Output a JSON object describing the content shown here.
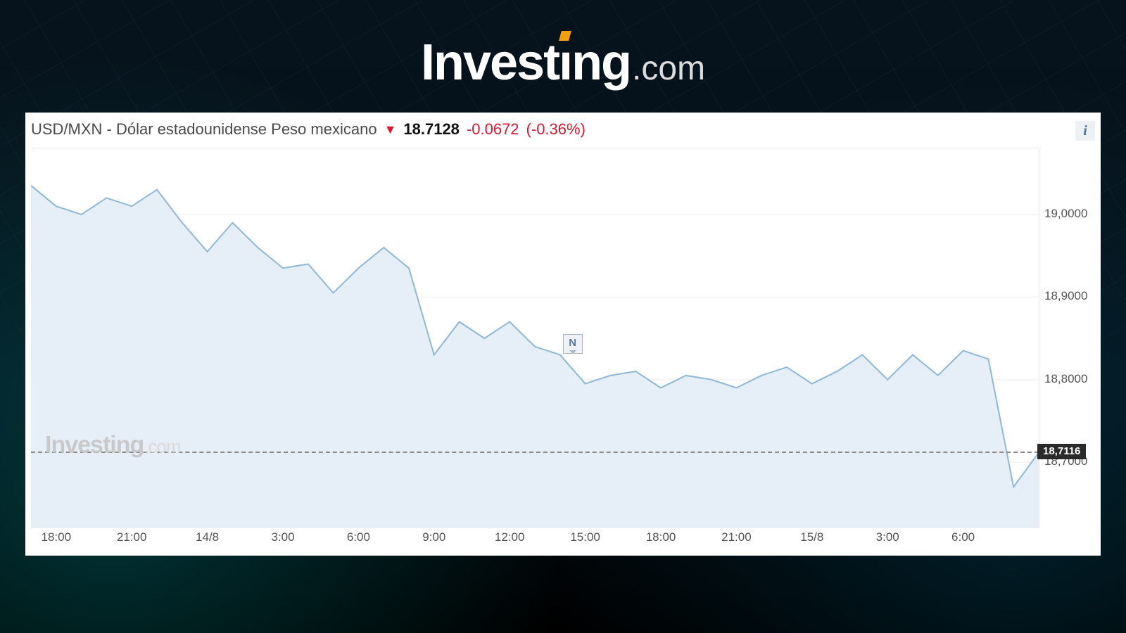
{
  "background": {
    "page_bg": "#000000",
    "grid_tint": "#507896"
  },
  "logo": {
    "investing": "Investing",
    "dot_com": ".com",
    "main_color": "#ffffff",
    "com_color": "#dcdcdc",
    "accent_color": "#f59e0b",
    "investing_fontsize": 72,
    "com_fontsize": 48
  },
  "chart_card": {
    "bg": "#ffffff"
  },
  "header": {
    "pair_label": "USD/MXN - Dólar estadounidense Peso mexicano",
    "arrow_glyph": "▼",
    "price": "18.7128",
    "change": "-0.0672",
    "pct": "(-0.36%)",
    "pair_color": "#4a4a4a",
    "price_color": "#111111",
    "negative_color": "#d9172f",
    "fontsize": 22
  },
  "info_button": {
    "glyph": "i",
    "bg": "#eef1f3",
    "fg": "#4477aa"
  },
  "chart": {
    "type": "area",
    "line_color": "#8fb7d6",
    "fill_color": "#e6eff7",
    "line_width": 2,
    "y_axis": {
      "min": 18.62,
      "max": 19.08,
      "ticks": [
        19.0,
        18.9,
        18.8,
        18.7
      ],
      "tick_labels": [
        "19,0000",
        "18,9000",
        "18,8000",
        "18,7000"
      ],
      "label_color": "#555555",
      "label_fontsize": 17,
      "gridline_color": "#eeeeee"
    },
    "x_axis": {
      "count": 41,
      "tick_indices": [
        1,
        4,
        7,
        10,
        13,
        16,
        19,
        22,
        25,
        28,
        31,
        34,
        37,
        40
      ],
      "tick_labels": [
        "18:00",
        "21:00",
        "14/8",
        "3:00",
        "6:00",
        "9:00",
        "12:00",
        "15:00",
        "18:00",
        "21:00",
        "15/8",
        "3:00",
        "6:00",
        ""
      ],
      "label_color": "#555555",
      "label_fontsize": 17
    },
    "series": [
      19.035,
      19.01,
      19.0,
      19.02,
      19.01,
      19.03,
      18.99,
      18.955,
      18.99,
      18.96,
      18.935,
      18.94,
      18.905,
      18.935,
      18.96,
      18.935,
      18.83,
      18.87,
      18.85,
      18.87,
      18.84,
      18.83,
      18.795,
      18.805,
      18.81,
      18.79,
      18.805,
      18.8,
      18.79,
      18.805,
      18.815,
      18.795,
      18.81,
      18.83,
      18.8,
      18.83,
      18.805,
      18.835,
      18.825,
      18.67,
      18.7116
    ],
    "current_price": {
      "value": 18.7116,
      "label": "18,7116",
      "flag_bg": "#2a2a2a",
      "flag_fg": "#ffffff",
      "dash_color": "#8a8a8a"
    },
    "event_flag": {
      "index": 21.5,
      "y_value": 18.83,
      "label": "N",
      "bg": "#eef2f7",
      "border": "#a8b8ca",
      "fg": "#5a78a0"
    },
    "watermark": {
      "main": "Investing",
      "com": ".com",
      "main_color": "#c9c9c9",
      "com_color": "#d9d9d9",
      "y_value": 18.72
    }
  }
}
